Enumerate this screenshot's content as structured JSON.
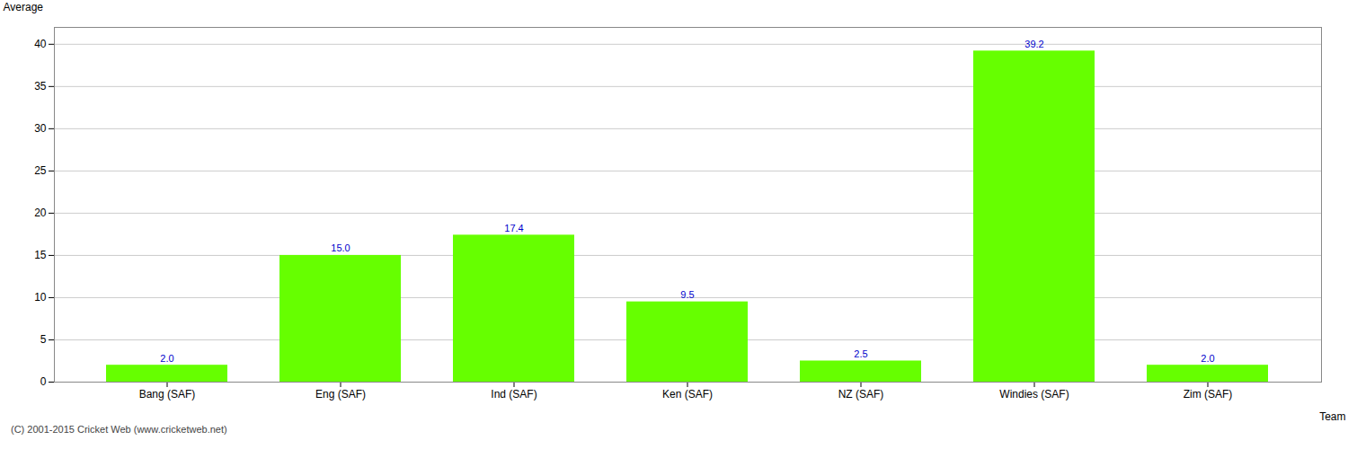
{
  "chart_data": {
    "type": "bar",
    "categories": [
      "Bang (SAF)",
      "Eng (SAF)",
      "Ind (SAF)",
      "Ken (SAF)",
      "NZ (SAF)",
      "Windies (SAF)",
      "Zim (SAF)"
    ],
    "values": [
      2.0,
      15.0,
      17.4,
      9.5,
      2.5,
      39.2,
      2.0
    ],
    "value_labels": [
      "2.0",
      "15.0",
      "17.4",
      "9.5",
      "2.5",
      "39.2",
      "2.0"
    ],
    "data_labels": true,
    "color": "#66ff00",
    "xlabel": "Team",
    "ylabel": "Average",
    "ylim": [
      0,
      42
    ],
    "yticks": [
      0,
      5,
      10,
      15,
      20,
      25,
      30,
      35,
      40
    ],
    "grid": true,
    "caption": "(C) 2001-2015 Cricket Web (www.cricketweb.net)"
  }
}
